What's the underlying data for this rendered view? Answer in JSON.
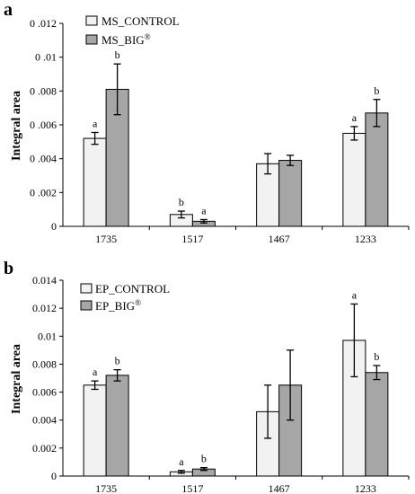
{
  "panels": [
    {
      "label": "a",
      "legend": [
        {
          "text": "MS_CONTROL",
          "sup": ""
        },
        {
          "text": "MS_BIG",
          "sup": "®"
        }
      ]
    },
    {
      "label": "b",
      "legend": [
        {
          "text": "EP_CONTROL",
          "sup": ""
        },
        {
          "text": "EP_BIG",
          "sup": "®"
        }
      ]
    }
  ],
  "colors": {
    "control": "#f2f2f2",
    "treated": "#a6a6a6",
    "stroke": "#000000"
  },
  "chart_data": [
    {
      "type": "bar",
      "panel": "a",
      "categories": [
        "1735",
        "1517",
        "1467",
        "1233"
      ],
      "ylabel": "Integral  area",
      "ylim": [
        0,
        0.012
      ],
      "yticks": [
        "0",
        "0 .002",
        "0 .004",
        "0 .006",
        "0 .008",
        "0 .01",
        "0 .012"
      ],
      "series": [
        {
          "name": "MS_CONTROL",
          "values": [
            0.0052,
            0.0007,
            0.0037,
            0.0055
          ],
          "errors": [
            0.00035,
            0.0002,
            0.0006,
            0.0004
          ],
          "letters": [
            "a",
            "b",
            "",
            "a"
          ]
        },
        {
          "name": "MS_BIG®",
          "values": [
            0.0081,
            0.0003,
            0.0039,
            0.0067
          ],
          "errors": [
            0.0015,
            0.0001,
            0.0003,
            0.0008
          ],
          "letters": [
            "b",
            "a",
            "",
            "b"
          ]
        }
      ]
    },
    {
      "type": "bar",
      "panel": "b",
      "categories": [
        "1735",
        "1517",
        "1467",
        "1233"
      ],
      "ylabel": "Integral  area",
      "ylim": [
        0,
        0.014
      ],
      "yticks": [
        "0",
        "0.002",
        "0.004",
        "0.006",
        "0.008",
        "0.01",
        "0.012",
        "0.014"
      ],
      "series": [
        {
          "name": "EP_CONTROL",
          "values": [
            0.0065,
            0.0003,
            0.0046,
            0.0097
          ],
          "errors": [
            0.0003,
            0.0001,
            0.0019,
            0.0026
          ],
          "letters": [
            "a",
            "a",
            "",
            "a"
          ]
        },
        {
          "name": "EP_BIG®",
          "values": [
            0.0072,
            0.0005,
            0.0065,
            0.0074
          ],
          "errors": [
            0.0004,
            0.0001,
            0.0025,
            0.0005
          ],
          "letters": [
            "b",
            "b",
            "",
            "b"
          ]
        }
      ]
    }
  ]
}
